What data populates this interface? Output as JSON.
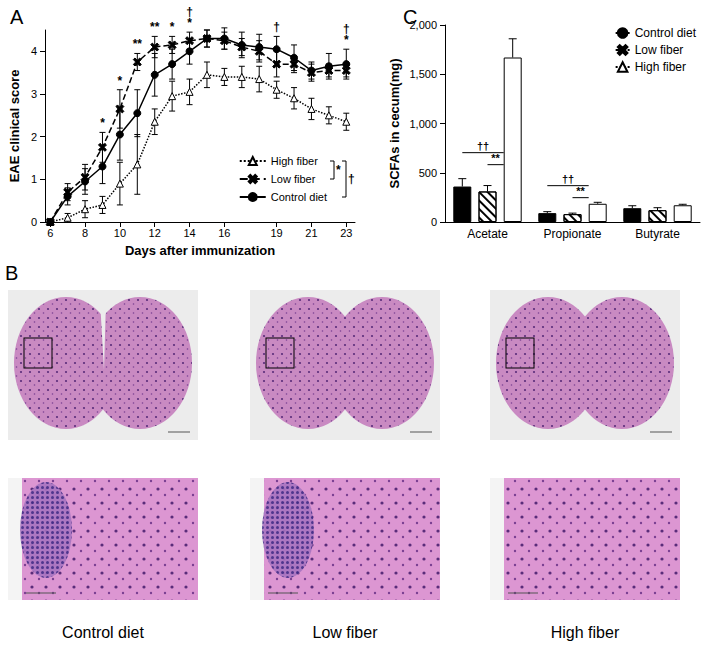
{
  "chart_data": [
    {
      "type": "line",
      "title": "A",
      "x_label": "Days after immunization",
      "y_label": "EAE clinical score",
      "x": [
        6,
        7,
        8,
        9,
        10,
        11,
        12,
        13,
        14,
        15,
        16,
        17,
        18,
        19,
        20,
        21,
        22,
        23
      ],
      "series": [
        {
          "name": "High fiber",
          "color": "#000000",
          "marker": "triangle_open",
          "line_style": "dotted",
          "values": [
            0,
            0.1,
            0.3,
            0.4,
            0.9,
            1.35,
            2.35,
            2.95,
            3.05,
            3.45,
            3.4,
            3.4,
            3.35,
            3.1,
            2.9,
            2.65,
            2.5,
            2.35
          ],
          "errors": [
            0,
            0.1,
            0.2,
            0.2,
            0.5,
            0.7,
            0.3,
            0.35,
            0.3,
            0.3,
            0.2,
            0.25,
            0.3,
            0.2,
            0.25,
            0.25,
            0.2,
            0.2
          ]
        },
        {
          "name": "Low fiber",
          "color": "#000000",
          "marker": "x",
          "line_style": "dashed",
          "values": [
            0,
            0.7,
            1.05,
            1.75,
            2.65,
            3.75,
            4.1,
            4.15,
            4.25,
            4.3,
            4.25,
            4.1,
            4.0,
            3.7,
            3.7,
            3.5,
            3.55,
            3.55
          ],
          "errors": [
            0,
            0.2,
            0.3,
            0.35,
            0.45,
            0.2,
            0.25,
            0.2,
            0.2,
            0.2,
            0.2,
            0.2,
            0.25,
            0.3,
            0.2,
            0.2,
            0.15,
            0.15
          ]
        },
        {
          "name": "Control diet",
          "color": "#000000",
          "marker": "circle",
          "line_style": "solid",
          "values": [
            0,
            0.6,
            0.95,
            1.3,
            2.05,
            2.55,
            3.45,
            3.7,
            4.0,
            4.3,
            4.3,
            4.15,
            4.1,
            4.05,
            3.85,
            3.55,
            3.65,
            3.7
          ],
          "errors": [
            0,
            0.2,
            0.3,
            0.4,
            0.6,
            0.55,
            0.5,
            0.35,
            0.3,
            0.2,
            0.25,
            0.3,
            0.3,
            0.3,
            0.3,
            0.2,
            0.3,
            0.35
          ]
        }
      ],
      "xlim": [
        5.7,
        23.5
      ],
      "xticks": [
        6,
        8,
        10,
        12,
        14,
        16,
        19,
        21,
        23
      ],
      "ylim": [
        0,
        4.5
      ],
      "yticks": [
        0,
        1,
        2,
        3,
        4
      ],
      "grid": false,
      "legend": "lower right",
      "annotations": [
        {
          "x": 9,
          "text": "*"
        },
        {
          "x": 10,
          "text": "*"
        },
        {
          "x": 11,
          "text": "**"
        },
        {
          "x": 12,
          "text": "**"
        },
        {
          "x": 13,
          "text": "*"
        },
        {
          "x": 14,
          "text": "*"
        },
        {
          "x": 14,
          "text": "†"
        },
        {
          "x": 19,
          "text": "†"
        },
        {
          "x": 23,
          "text": "*"
        },
        {
          "x": 23,
          "text": "†"
        }
      ],
      "legend_annotations": [
        {
          "series": [
            "High fiber",
            "Low fiber"
          ],
          "text": "*"
        },
        {
          "series": [
            "High fiber",
            "Control diet"
          ],
          "text": "†"
        }
      ]
    },
    {
      "type": "bar",
      "title": "C",
      "y_label": "SCFAs in cecum(mg)",
      "categories": [
        "Acetate",
        "Propionate",
        "Butyrate"
      ],
      "series": [
        {
          "name": "Control diet",
          "color": "#000000",
          "marker": "filled",
          "values": [
            360,
            90,
            140
          ],
          "errors": [
            80,
            15,
            25
          ]
        },
        {
          "name": "Low fiber",
          "color": "#ffffff",
          "marker": "hatched",
          "values": [
            310,
            80,
            120
          ],
          "errors": [
            60,
            10,
            25
          ]
        },
        {
          "name": "High fiber",
          "color": "#ffffff",
          "marker": "open",
          "values": [
            1670,
            185,
            170
          ],
          "errors": [
            190,
            15,
            10
          ]
        }
      ],
      "ylim": [
        0,
        2000
      ],
      "yticks": [
        0,
        500,
        1000,
        1500,
        2000
      ],
      "grid": false,
      "legend": "upper right",
      "annotations": [
        {
          "category": "Acetate",
          "from": "Control diet",
          "to": "High fiber",
          "text": "††"
        },
        {
          "category": "Acetate",
          "from": "Low fiber",
          "to": "High fiber",
          "text": "**"
        },
        {
          "category": "Propionate",
          "from": "Control diet",
          "to": "High fiber",
          "text": "††"
        },
        {
          "category": "Propionate",
          "from": "Low fiber",
          "to": "High fiber",
          "text": "**"
        }
      ]
    }
  ],
  "panel_b": {
    "title": "B",
    "captions": [
      "Control diet",
      "Low fiber",
      "High fiber"
    ]
  }
}
